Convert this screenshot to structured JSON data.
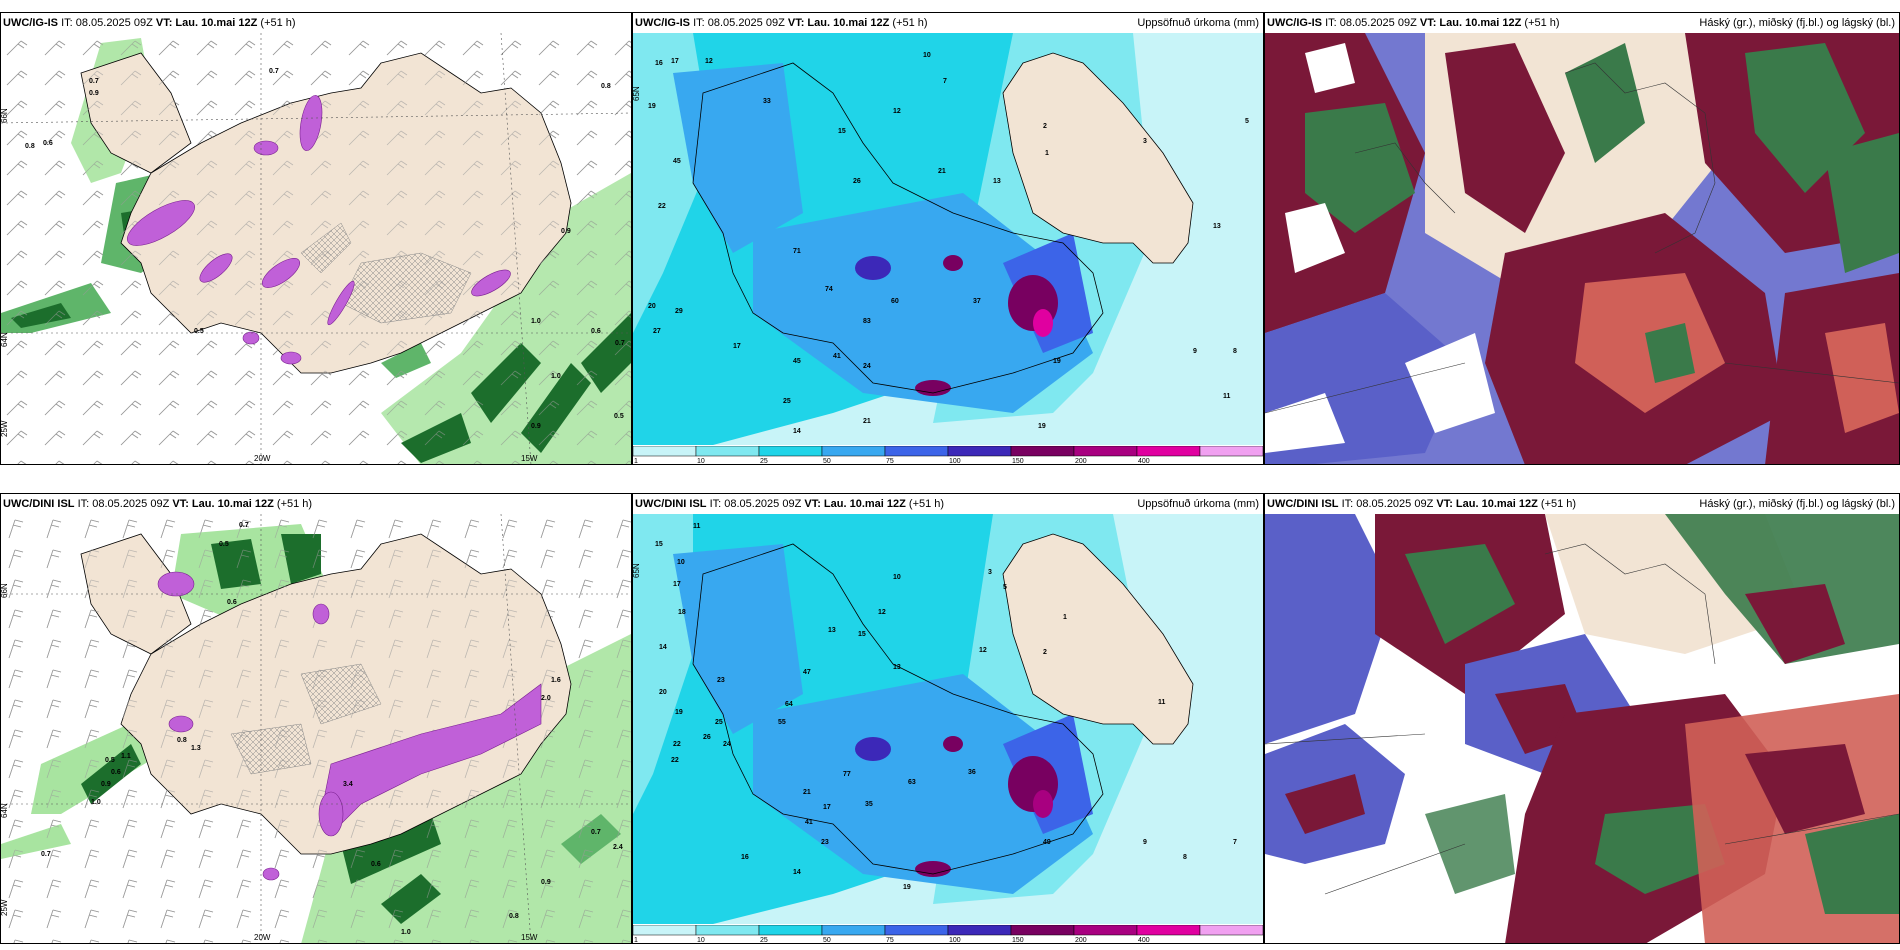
{
  "rows": [
    {
      "panel_wind": {
        "model": "UWC/IG-IS",
        "it_label": "IT: 08.05.2025 09Z",
        "vt_label": "VT:",
        "vt_value": "Lau. 10.mai 12Z",
        "lead": "(+51 h)",
        "lat_labels": [
          "66N",
          "64N"
        ],
        "lon_labels": [
          "25W",
          "20W",
          "15W"
        ],
        "values": [
          "0.7",
          "0.9",
          "0.6",
          "0.8",
          "0.7",
          "0.5",
          "0.9",
          "1.0",
          "0.8",
          "0.6",
          "0.7",
          "0.5",
          "0.9",
          "1.0"
        ]
      },
      "panel_precip": {
        "model": "UWC/IG-IS",
        "it_label": "IT: 08.05.2025 09Z",
        "vt_label": "VT:",
        "vt_value": "Lau. 10.mai 12Z",
        "lead": "(+51 h)",
        "title": "Uppsöfnuð úrkoma (mm)",
        "lat_labels": [
          "65N"
        ],
        "values": [
          "16",
          "17",
          "12",
          "10",
          "7",
          "19",
          "33",
          "26",
          "15",
          "22",
          "20",
          "29",
          "27",
          "25",
          "17",
          "14",
          "12",
          "13",
          "21",
          "37",
          "19",
          "45",
          "71",
          "74",
          "60",
          "83",
          "41",
          "45",
          "24",
          "21",
          "19",
          "11",
          "9",
          "8",
          "5",
          "3",
          "2",
          "1",
          "13"
        ]
      },
      "panel_cloud": {
        "model": "UWC/IG-IS",
        "it_label": "IT: 08.05.2025 09Z",
        "vt_label": "VT:",
        "vt_value": "Lau. 10.mai 12Z",
        "lead": "(+51 h)",
        "title": "Háský (gr.), miðský (fj.bl.) og lágský (bl.)"
      }
    },
    {
      "panel_wind": {
        "model": "UWC/DINI ISL",
        "it_label": "IT: 08.05.2025 09Z",
        "vt_label": "VT:",
        "vt_value": "Lau. 10.mai 12Z",
        "lead": "(+51 h)",
        "lat_labels": [
          "66N",
          "64N"
        ],
        "lon_labels": [
          "25W",
          "20W",
          "15W"
        ],
        "values": [
          "0.7",
          "0.5",
          "0.6",
          "1.3",
          "0.8",
          "0.6",
          "1.1",
          "1.0",
          "0.9",
          "0.5",
          "1.6",
          "2.0",
          "3.4",
          "0.7",
          "0.8",
          "0.9",
          "1.0",
          "0.6",
          "0.7",
          "2.4"
        ]
      },
      "panel_precip": {
        "model": "UWC/DINI ISL",
        "it_label": "IT: 08.05.2025 09Z",
        "vt_label": "VT:",
        "vt_value": "Lau. 10.mai 12Z",
        "lead": "(+51 h)",
        "title": "Uppsöfnuð úrkoma (mm)",
        "lat_labels": [
          "65N"
        ],
        "values": [
          "15",
          "11",
          "10",
          "17",
          "14",
          "20",
          "22",
          "23",
          "19",
          "24",
          "12",
          "13",
          "17",
          "64",
          "55",
          "47",
          "63",
          "77",
          "35",
          "49",
          "36",
          "41",
          "23",
          "16",
          "14",
          "9",
          "8",
          "7",
          "3",
          "5",
          "2",
          "1",
          "11",
          "12",
          "13",
          "15",
          "21",
          "19",
          "10",
          "18",
          "22",
          "25",
          "26"
        ]
      },
      "panel_cloud": {
        "model": "UWC/DINI ISL",
        "it_label": "IT: 08.05.2025 09Z",
        "vt_label": "VT:",
        "vt_value": "Lau. 10.mai 12Z",
        "lead": "(+51 h)",
        "title": "Háský (gr.), miðský (fj.bl.) og lágský (bl.)"
      }
    }
  ],
  "precip_colorbar": {
    "ticks": [
      "1",
      "10",
      "25",
      "50",
      "75",
      "100",
      "150",
      "200",
      "400"
    ],
    "colors": [
      "#c8f4f8",
      "#7fe8f0",
      "#20d4e8",
      "#38a8f0",
      "#3c64e8",
      "#3c28b8",
      "#780060",
      "#a80080",
      "#e000a0",
      "#f0a0f0"
    ]
  },
  "colors": {
    "land": "#f2e4d4",
    "sea_precip": "#c8f4f8",
    "magenta": "#c060d8",
    "green_light": "#a8e4a0",
    "green_dark": "#1c6e2c",
    "cloud_maroon": "#7a1838",
    "cloud_blue": "#5a60c8",
    "cloud_green": "#3a7a4a",
    "cloud_red": "#d06058"
  }
}
